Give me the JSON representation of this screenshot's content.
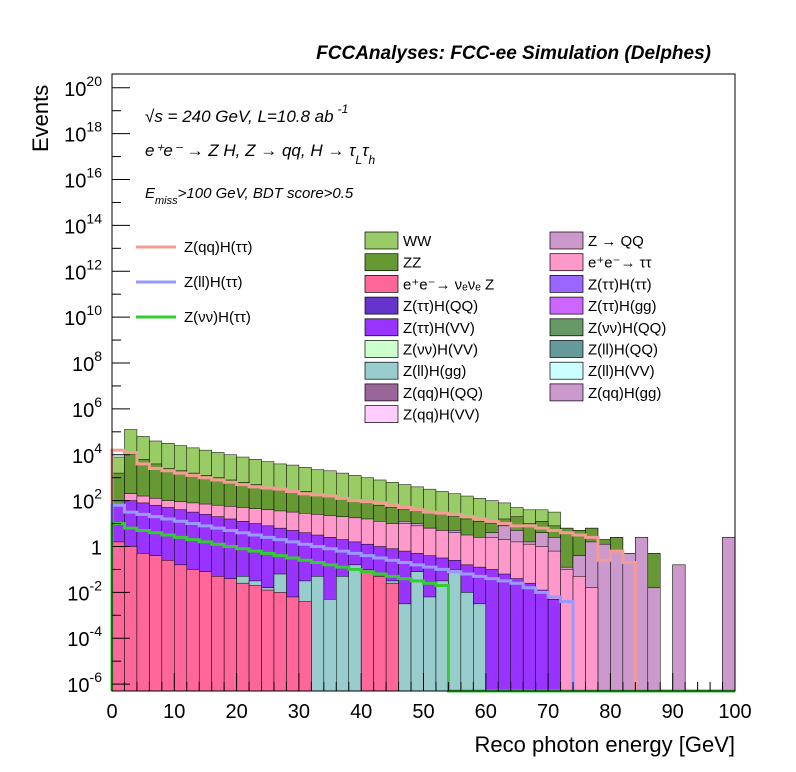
{
  "chart_data": {
    "type": "histogram",
    "header": "FCCAnalyses: FCC-ee Simulation (Delphes)",
    "xlabel": "Reco photon energy [GeV]",
    "ylabel": "Events",
    "xlim": [
      0,
      100
    ],
    "ylim_log10": [
      -6.3,
      20.6
    ],
    "y_scale": "log",
    "bin_width": 2,
    "x_tick_labels": [
      "0",
      "10",
      "20",
      "30",
      "40",
      "50",
      "60",
      "70",
      "80",
      "90",
      "100"
    ],
    "y_tick_labels": [
      {
        "base": "10",
        "exp": "20",
        "log": 20
      },
      {
        "base": "10",
        "exp": "18",
        "log": 18
      },
      {
        "base": "10",
        "exp": "16",
        "log": 16
      },
      {
        "base": "10",
        "exp": "14",
        "log": 14
      },
      {
        "base": "10",
        "exp": "12",
        "log": 12
      },
      {
        "base": "10",
        "exp": "10",
        "log": 10
      },
      {
        "base": "10",
        "exp": "8",
        "log": 8
      },
      {
        "base": "10",
        "exp": "6",
        "log": 6
      },
      {
        "base": "10",
        "exp": "4",
        "log": 4
      },
      {
        "base": "10",
        "exp": "2",
        "log": 2
      },
      {
        "base": "1",
        "exp": "",
        "log": 0
      },
      {
        "base": "10",
        "exp": "-2",
        "log": -2
      },
      {
        "base": "10",
        "exp": "-4",
        "log": -4
      },
      {
        "base": "10",
        "exp": "-6",
        "log": -6
      }
    ],
    "annotations": {
      "line1": "√s = 240 GeV, L=10.8 ab",
      "line1_sup": "-1",
      "line2": "e⁺e⁻ → Z H, Z → qq, H → τ",
      "line2_sub1": "L",
      "line2_tau": "τ",
      "line2_sub2": "h",
      "line3_E": "E",
      "line3_sub": "miss",
      "line3_rest": ">100 GeV, BDT score>0.5"
    },
    "legend_signals": [
      {
        "label": "Z(qq)H(ττ)",
        "color": "#f49c94"
      },
      {
        "label": "Z(ll)H(ττ)",
        "color": "#9999ff"
      },
      {
        "label": "Z(νν)H(ττ)",
        "color": "#33cc33"
      }
    ],
    "legend_backgrounds_col1": [
      {
        "label": "WW",
        "color": "#99cc66"
      },
      {
        "label": "ZZ",
        "color": "#669933"
      },
      {
        "label": "e⁺e⁻→ νₑνₑ Z",
        "color": "#ff6699"
      },
      {
        "label": "Z(ττ)H(QQ)",
        "color": "#6633cc"
      },
      {
        "label": "Z(ττ)H(VV)",
        "color": "#9933ff"
      },
      {
        "label": "Z(νν)H(VV)",
        "color": "#ccffcc"
      },
      {
        "label": "Z(ll)H(gg)",
        "color": "#99cccc"
      },
      {
        "label": "Z(qq)H(QQ)",
        "color": "#996699"
      },
      {
        "label": "Z(qq)H(VV)",
        "color": "#ffccff"
      }
    ],
    "legend_backgrounds_col2": [
      {
        "label": "Z → QQ",
        "color": "#cc99cc"
      },
      {
        "label": "e⁺e⁻→ ττ",
        "color": "#ff99cc"
      },
      {
        "label": "Z(ττ)H(ττ)",
        "color": "#9966ff"
      },
      {
        "label": "Z(ττ)H(gg)",
        "color": "#cc66ff"
      },
      {
        "label": "Z(νν)H(QQ)",
        "color": "#669966"
      },
      {
        "label": "Z(ll)H(QQ)",
        "color": "#669999"
      },
      {
        "label": "Z(ll)H(VV)",
        "color": "#ccffff"
      },
      {
        "label": "Z(qq)H(gg)",
        "color": "#cc99cc"
      }
    ],
    "stack_total_log10": [
      3.9,
      5.1,
      4.8,
      4.6,
      4.5,
      4.4,
      4.3,
      4.2,
      4.1,
      4.0,
      3.9,
      3.8,
      3.7,
      3.6,
      3.55,
      3.45,
      3.35,
      3.3,
      3.2,
      3.1,
      3.0,
      2.9,
      2.8,
      2.7,
      2.6,
      2.5,
      2.4,
      2.3,
      2.2,
      2.1,
      2.0,
      1.9,
      1.7,
      1.6,
      1.6,
      1.5,
      0.8,
      0.7,
      0.8,
      0.3,
      0.4,
      -0.3,
      0.4,
      -0.3,
      -6.3,
      -0.8,
      -6.3,
      -6.3,
      -6.3,
      0.4
    ],
    "layers": [
      {
        "name": "ZZ",
        "color": "#669933",
        "log10": [
          3.2,
          4.0,
          3.8,
          3.6,
          3.4,
          3.3,
          3.2,
          3.1,
          3.0,
          2.9,
          2.8,
          2.7,
          2.6,
          2.5,
          2.45,
          2.4,
          2.3,
          2.2,
          2.1,
          2.0,
          1.9,
          1.8,
          1.7,
          1.6,
          1.55,
          1.5,
          1.4,
          1.3,
          1.2,
          1.1,
          1.0,
          1.2,
          1.3,
          1.0,
          1.1,
          0.9,
          0.8,
          0.7,
          0.8,
          0.3,
          0.4,
          -0.3,
          0.4,
          -0.3,
          -6.3,
          -0.8,
          -6.3,
          -6.3,
          -6.3,
          -6.3
        ]
      },
      {
        "name": "Z → QQ",
        "color": "#cc99cc",
        "log10": [
          -2.8,
          -1.5,
          0.4,
          0.3,
          -0.2,
          -0.5,
          0.6,
          0.1,
          -0.3,
          0.0,
          0.5,
          0.2,
          -0.5,
          -0.1,
          0.7,
          0.0,
          -0.2,
          0.3,
          0.2,
          0.3,
          1.0,
          0.8,
          0.6,
          1.1,
          1.0,
          0.8,
          0.5,
          0.7,
          -1.0,
          0.3,
          0.6,
          0.9,
          0.7,
          0.2,
          0.6,
          0.4,
          -0.9,
          -0.4,
          0.2,
          0.1,
          -0.2,
          -0.3,
          0.4,
          -1.8,
          -6.3,
          -0.8,
          -6.3,
          -6.3,
          -6.3,
          0.4
        ]
      },
      {
        "name": "e⁺e⁻→ ττ",
        "color": "#ff99cc",
        "log10": [
          1.5,
          2.3,
          2.2,
          2.1,
          2.0,
          1.95,
          1.9,
          1.85,
          1.8,
          1.75,
          1.7,
          1.65,
          1.6,
          1.55,
          1.5,
          1.45,
          1.4,
          1.35,
          1.3,
          1.25,
          1.2,
          1.1,
          1.0,
          1.0,
          0.9,
          0.8,
          0.7,
          0.6,
          0.5,
          0.4,
          0.4,
          0.3,
          0.2,
          0.1,
          0.0,
          -0.2,
          -1.0,
          -1.3,
          -1.8,
          -6.3,
          -6.3,
          -6.3,
          -6.3,
          -6.3,
          -6.3,
          -6.3,
          -6.3,
          -6.3,
          -6.3,
          -6.3
        ]
      },
      {
        "name": "Z(ττ)H(VV)",
        "color": "#9933ff",
        "log10": [
          1.8,
          2.0,
          1.9,
          1.8,
          1.7,
          1.6,
          1.5,
          1.4,
          1.3,
          1.2,
          1.1,
          1.0,
          0.9,
          0.8,
          0.7,
          0.6,
          0.5,
          0.4,
          0.3,
          0.2,
          0.1,
          0.0,
          -0.1,
          -0.2,
          -0.3,
          -0.4,
          -0.5,
          -0.6,
          -0.8,
          -0.9,
          -1.0,
          -1.2,
          -1.4,
          -1.6,
          -1.9,
          -2.3,
          -6.3,
          -6.3,
          -6.3,
          -6.3,
          -6.3,
          -6.3,
          -6.3,
          -6.3,
          -6.3,
          -6.3,
          -6.3,
          -6.3,
          -6.3,
          -6.3
        ]
      },
      {
        "name": "Z(ll)H(gg)",
        "color": "#99cccc",
        "log10": [
          -2.8,
          -2.3,
          -1.5,
          -1.5,
          -2.0,
          -1.5,
          -2.3,
          -1.8,
          -1.5,
          -2.0,
          -1.3,
          -1.5,
          -1.8,
          -1.2,
          -2.5,
          -1.5,
          -1.3,
          -2.3,
          -1.3,
          -0.8,
          -1.0,
          -2.0,
          -1.5,
          -2.5,
          -1.1,
          -2.2,
          -1.5,
          -1.0,
          -2.0,
          -2.5,
          -6.3,
          -6.3,
          -6.3,
          -6.3,
          -6.3,
          -6.3,
          -6.3,
          -6.3,
          -6.3,
          -6.3,
          -6.3,
          -6.3,
          -6.3,
          -6.3,
          -6.3,
          -6.3,
          -6.3,
          -6.3,
          -6.3,
          -6.3
        ]
      },
      {
        "name": "Z(ll)H(VV)",
        "color": "#ccffff",
        "log10": [
          -6.3,
          -6.3,
          -6.3,
          -6.3,
          -6.3,
          -6.3,
          -6.3,
          -6.3,
          -6.3,
          -6.3,
          -6.3,
          -6.3,
          -6.3,
          -6.3,
          -6.3,
          -6.3,
          -6.3,
          -6.3,
          -6.3,
          -6.3,
          -6.3,
          -6.3,
          -6.3,
          -6.3,
          -6.3,
          -6.3,
          -6.3,
          -6.3,
          -6.3,
          -6.3,
          -6.3,
          -6.3,
          -6.3,
          -6.3,
          -6.3,
          -6.3,
          -6.3,
          -6.3,
          -6.3,
          -6.3,
          -6.3,
          -6.3,
          -6.3,
          -6.3,
          -6.3,
          -6.3,
          -6.3,
          -6.3,
          -6.3,
          -6.3
        ]
      },
      {
        "name": "e⁺e⁻→ νₑνₑ Z",
        "color": "#ff6699",
        "log10": [
          0.2,
          0.0,
          -0.3,
          -0.4,
          -0.6,
          -0.8,
          -1.0,
          -1.1,
          -1.3,
          -1.4,
          -1.6,
          -1.7,
          -1.9,
          -2.0,
          -2.2,
          -2.4,
          -6.3,
          -6.3,
          -6.3,
          -6.3,
          -1.0,
          -1.3,
          -1.6,
          -6.3,
          -6.3,
          -6.3,
          -6.3,
          -6.3,
          -6.3,
          -6.3,
          -6.3,
          -6.3,
          -6.3,
          -6.3,
          -6.3,
          -6.3,
          -6.3,
          -6.3,
          -6.3,
          -6.3,
          -6.3,
          -6.3,
          -6.3,
          -6.3,
          -6.3,
          -6.3,
          -6.3,
          -6.3,
          -6.3,
          -6.3
        ]
      }
    ],
    "signal_lines": [
      {
        "name": "Z(qq)H(ττ)",
        "color": "#f49c94",
        "log10": [
          4.2,
          4.1,
          3.6,
          3.4,
          3.3,
          3.2,
          3.1,
          3.0,
          2.9,
          2.8,
          2.7,
          2.6,
          2.55,
          2.5,
          2.4,
          2.3,
          2.25,
          2.2,
          2.1,
          2.0,
          1.95,
          1.9,
          1.8,
          1.7,
          1.6,
          1.5,
          1.45,
          1.4,
          1.3,
          1.2,
          1.1,
          1.0,
          0.9,
          0.9,
          0.8,
          0.7,
          0.6,
          0.5,
          0.4,
          -0.6,
          -0.2,
          -0.7,
          -6.3,
          -6.3,
          -6.3,
          -6.3,
          -6.3,
          -6.3,
          -6.3,
          -6.3
        ]
      },
      {
        "name": "Z(ll)H(ττ)",
        "color": "#9999ff",
        "log10": [
          1.8,
          1.5,
          1.4,
          1.3,
          1.2,
          1.1,
          1.0,
          0.9,
          0.8,
          0.7,
          0.6,
          0.5,
          0.4,
          0.3,
          0.2,
          0.1,
          0.0,
          -0.1,
          -0.2,
          -0.3,
          -0.4,
          -0.5,
          -0.6,
          -0.7,
          -0.8,
          -0.9,
          -1.0,
          -1.1,
          -1.2,
          -1.3,
          -1.4,
          -1.5,
          -1.6,
          -1.8,
          -2.0,
          -2.2,
          -2.4,
          -6.3,
          -6.3,
          -6.3,
          -6.3,
          -6.3,
          -6.3,
          -6.3,
          -6.3,
          -6.3,
          -6.3,
          -6.3,
          -6.3,
          -6.3
        ]
      },
      {
        "name": "Z(νν)H(ττ)",
        "color": "#33cc33",
        "log10": [
          1.0,
          0.8,
          0.7,
          0.6,
          0.5,
          0.4,
          0.3,
          0.2,
          0.1,
          0.0,
          -0.1,
          -0.2,
          -0.3,
          -0.4,
          -0.5,
          -0.6,
          -0.7,
          -0.8,
          -0.9,
          -1.0,
          -1.1,
          -1.2,
          -1.3,
          -1.4,
          -1.5,
          -1.6,
          -1.7,
          -6.3,
          -6.3,
          -6.3,
          -6.3,
          -6.3,
          -6.3,
          -6.3,
          -6.3,
          -6.3,
          -6.3,
          -6.3,
          -6.3,
          -6.3,
          -6.3,
          -6.3,
          -6.3,
          -6.3,
          -6.3,
          -6.3,
          -6.3,
          -6.3,
          -6.3,
          -6.3
        ]
      }
    ]
  }
}
